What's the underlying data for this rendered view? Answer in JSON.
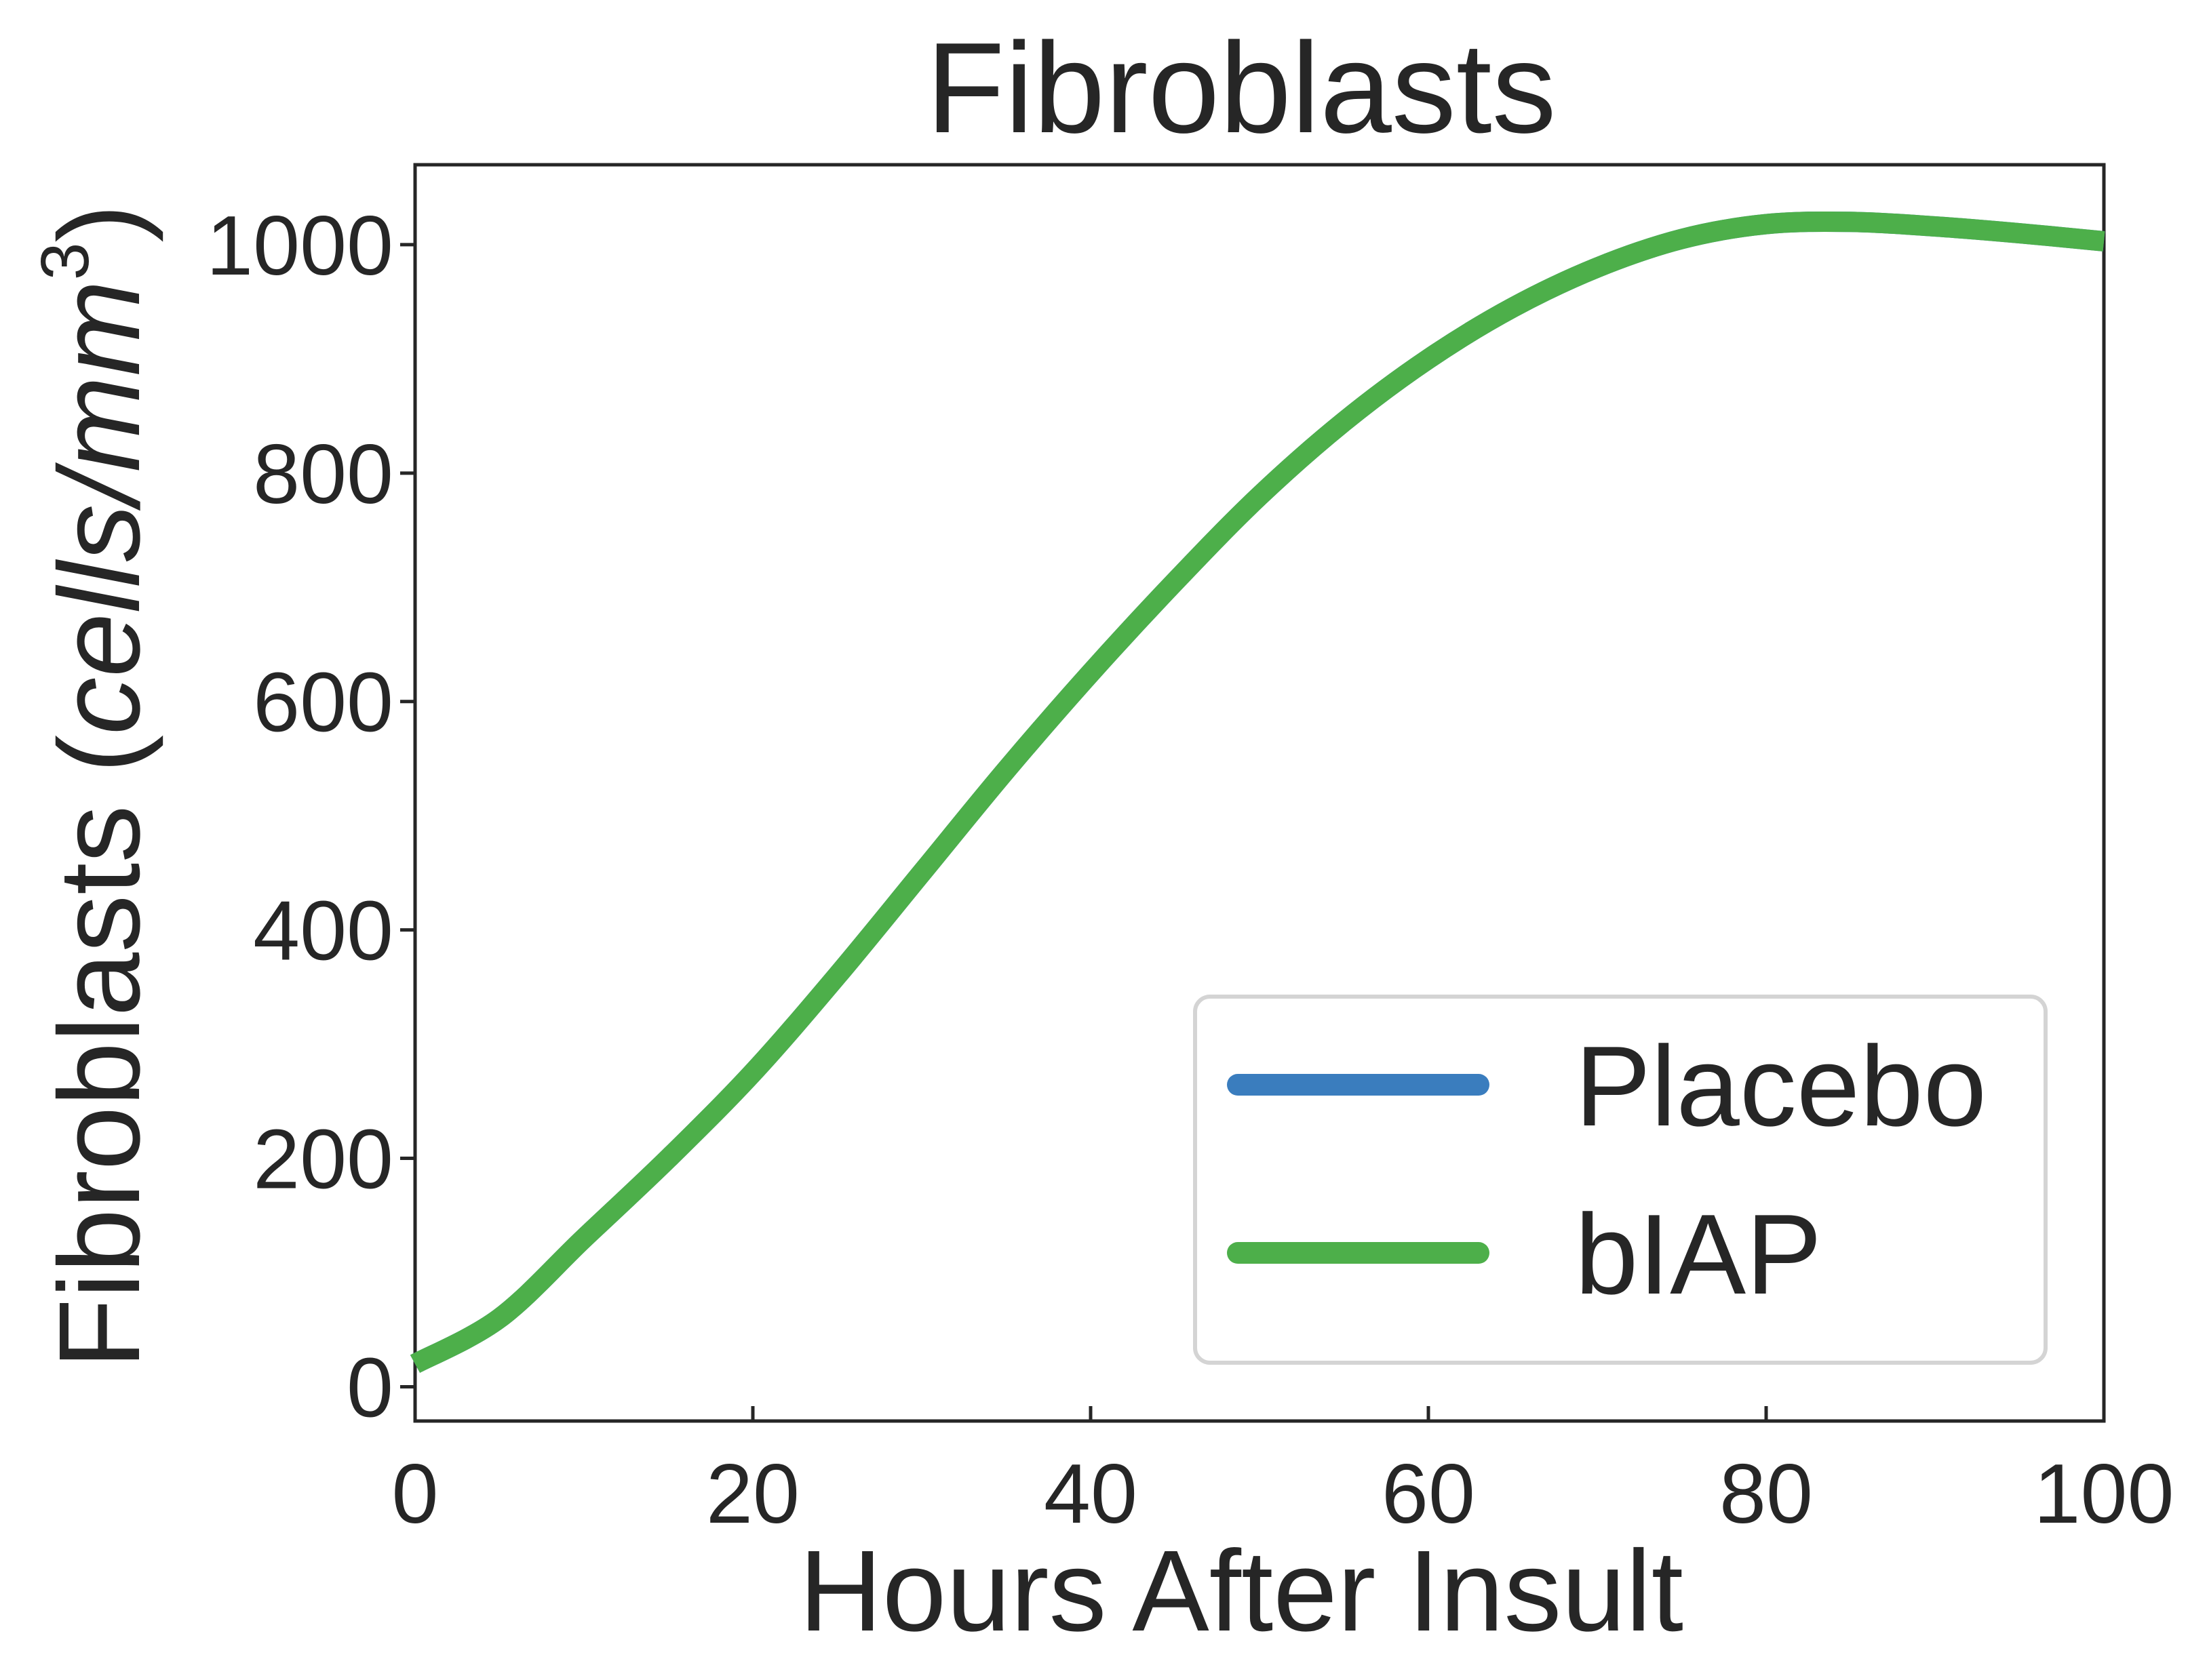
{
  "chart_data": {
    "type": "line",
    "title": "Fibroblasts",
    "xlabel": "Hours After Insult",
    "ylabel_main": "Fibroblasts (",
    "ylabel_unit": "cells/mm",
    "ylabel_exp": "3",
    "ylabel_close": ")",
    "xlim": [
      0,
      100
    ],
    "ylim": [
      -30,
      1070
    ],
    "xticks": [
      0,
      20,
      40,
      60,
      80,
      100
    ],
    "yticks": [
      0,
      200,
      400,
      600,
      800,
      1000
    ],
    "xtick_labels": [
      "0",
      "20",
      "40",
      "60",
      "80",
      "100"
    ],
    "ytick_labels": [
      "0",
      "200",
      "400",
      "600",
      "800",
      "1000"
    ],
    "grid": false,
    "legend": {
      "position": "lower-right",
      "entries": [
        "Placebo",
        "bIAP"
      ]
    },
    "series": [
      {
        "name": "Placebo",
        "color": "#3a7dbe",
        "x": [
          0,
          5,
          10,
          15,
          20,
          25,
          30,
          35,
          40,
          45,
          50,
          55,
          60,
          65,
          70,
          75,
          80,
          85,
          90,
          95,
          100
        ],
        "y": [
          20,
          60,
          130,
          200,
          275,
          360,
          450,
          540,
          625,
          705,
          780,
          845,
          900,
          945,
          980,
          1005,
          1018,
          1020,
          1016,
          1010,
          1003
        ]
      },
      {
        "name": "bIAP",
        "color": "#4daf4a",
        "x": [
          0,
          5,
          10,
          15,
          20,
          25,
          30,
          35,
          40,
          45,
          50,
          55,
          60,
          65,
          70,
          75,
          80,
          85,
          90,
          95,
          100
        ],
        "y": [
          20,
          60,
          130,
          200,
          275,
          360,
          450,
          540,
          625,
          705,
          780,
          845,
          900,
          945,
          980,
          1005,
          1018,
          1020,
          1016,
          1010,
          1003
        ]
      }
    ]
  }
}
